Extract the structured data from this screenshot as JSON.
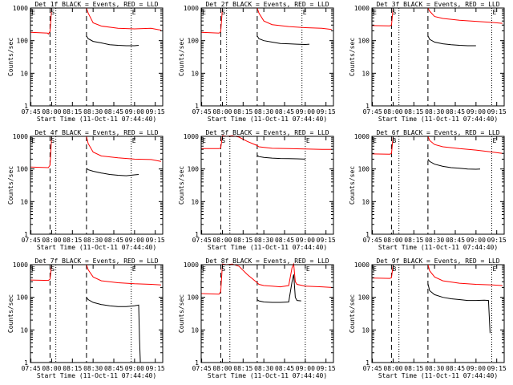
{
  "chart_data": [
    {
      "type": "line",
      "title": "Det 1f BLACK = Events, RED = LLD",
      "ylabel": "Counts/sec",
      "xlabel": "Start Time (11-Oct-11 07:44:40)",
      "x_ticks": [
        "07:45",
        "08:00",
        "08:15",
        "08:30",
        "08:45",
        "09:00",
        "09:15"
      ],
      "y_ticks": [
        "1",
        "10",
        "100",
        "1000"
      ],
      "xlim": [
        7.744,
        9.34
      ],
      "ylim": [
        1,
        1000
      ],
      "yscale": "log",
      "flags": [
        {
          "x": 7.745,
          "text": "E"
        },
        {
          "x": 7.98,
          "text": "S"
        },
        {
          "x": 8.96,
          "text": "E"
        }
      ],
      "dashed_lines": [
        7.98,
        8.42
      ],
      "dotted_lines": [
        8.05,
        8.96
      ],
      "series": [
        {
          "name": "RED",
          "color": "#ff0000",
          "x": [
            7.745,
            7.95,
            7.96,
            7.98,
            8.0,
            8.42,
            8.44,
            8.5,
            8.6,
            8.8,
            9.0,
            9.2,
            9.32
          ],
          "y": [
            180,
            170,
            160,
            190,
            1000,
            1000,
            700,
            350,
            280,
            240,
            230,
            240,
            210
          ]
        },
        {
          "name": "BLACK",
          "color": "#000000",
          "x": [
            8.42,
            8.44,
            8.5,
            8.6,
            8.7,
            8.8,
            8.9,
            9.0,
            9.05
          ],
          "y": [
            140,
            115,
            95,
            85,
            75,
            72,
            70,
            70,
            72
          ]
        }
      ]
    },
    {
      "type": "line",
      "title": "Det 2f BLACK = Events, RED = LLD",
      "ylabel": "Counts/sec",
      "xlabel": "Start Time (11-Oct-11 07:44:40)",
      "x_ticks": [
        "07:45",
        "08:00",
        "08:15",
        "08:30",
        "08:45",
        "09:00",
        "09:15"
      ],
      "y_ticks": [
        "1",
        "10",
        "100",
        "1000"
      ],
      "xlim": [
        7.744,
        9.34
      ],
      "ylim": [
        1,
        1000
      ],
      "yscale": "log",
      "flags": [
        {
          "x": 7.745,
          "text": "E"
        },
        {
          "x": 7.98,
          "text": "S"
        },
        {
          "x": 8.96,
          "text": "E"
        }
      ],
      "dashed_lines": [
        7.98,
        8.42
      ],
      "dotted_lines": [
        8.05,
        8.96
      ],
      "series": [
        {
          "name": "RED",
          "color": "#ff0000",
          "x": [
            7.745,
            7.96,
            7.98,
            8.0,
            8.42,
            8.44,
            8.5,
            8.6,
            8.8,
            9.0,
            9.2,
            9.32
          ],
          "y": [
            180,
            170,
            190,
            1000,
            1000,
            700,
            400,
            310,
            270,
            250,
            240,
            220
          ]
        },
        {
          "name": "BLACK",
          "color": "#000000",
          "x": [
            8.42,
            8.44,
            8.5,
            8.6,
            8.7,
            8.8,
            8.9,
            9.0,
            9.05
          ],
          "y": [
            140,
            115,
            100,
            90,
            82,
            80,
            78,
            76,
            78
          ]
        }
      ]
    },
    {
      "type": "line",
      "title": "Det 3f BLACK = Events, RED = LLD",
      "ylabel": "Counts/sec",
      "xlabel": "Start Time (11-Oct-11 07:44:40)",
      "x_ticks": [
        "07:45",
        "08:00",
        "08:15",
        "08:30",
        "08:45",
        "09:00",
        "09:15"
      ],
      "y_ticks": [
        "1",
        "10",
        "100",
        "1000"
      ],
      "xlim": [
        7.744,
        9.34
      ],
      "ylim": [
        1,
        1000
      ],
      "yscale": "log",
      "flags": [
        {
          "x": 7.745,
          "text": "E"
        },
        {
          "x": 7.98,
          "text": "S"
        },
        {
          "x": 9.19,
          "text": "E"
        }
      ],
      "dashed_lines": [
        7.98,
        8.42
      ],
      "dotted_lines": [
        8.07,
        9.19
      ],
      "series": [
        {
          "name": "RED",
          "color": "#ff0000",
          "x": [
            7.745,
            7.96,
            7.98,
            8.0,
            8.42,
            8.44,
            8.5,
            8.6,
            8.8,
            9.0,
            9.2,
            9.32
          ],
          "y": [
            290,
            285,
            300,
            1000,
            1000,
            800,
            550,
            480,
            420,
            390,
            360,
            340
          ]
        },
        {
          "name": "BLACK",
          "color": "#000000",
          "x": [
            8.42,
            8.44,
            8.5,
            8.6,
            8.7,
            8.8,
            8.9,
            9.0
          ],
          "y": [
            140,
            110,
            90,
            80,
            75,
            72,
            70,
            70
          ]
        }
      ]
    },
    {
      "type": "line",
      "title": "Det 4f BLACK = Events, RED = LLD",
      "ylabel": "Counts/sec",
      "xlabel": "Start Time (11-Oct-11 07:44:40)",
      "x_ticks": [
        "07:45",
        "08:00",
        "08:15",
        "08:30",
        "08:45",
        "09:00",
        "09:15"
      ],
      "y_ticks": [
        "1",
        "10",
        "100",
        "1000"
      ],
      "xlim": [
        7.744,
        9.34
      ],
      "ylim": [
        1,
        1000
      ],
      "yscale": "log",
      "flags": [
        {
          "x": 7.745,
          "text": "E"
        },
        {
          "x": 7.98,
          "text": "S"
        },
        {
          "x": 8.96,
          "text": "E"
        }
      ],
      "dashed_lines": [
        7.98,
        8.42
      ],
      "dotted_lines": [
        8.05,
        8.96
      ],
      "series": [
        {
          "name": "RED",
          "color": "#ff0000",
          "x": [
            7.745,
            7.96,
            7.98,
            8.0,
            8.42,
            8.44,
            8.5,
            8.6,
            8.8,
            9.0,
            9.2,
            9.32
          ],
          "y": [
            115,
            110,
            130,
            1000,
            1000,
            600,
            330,
            250,
            220,
            200,
            195,
            170
          ]
        },
        {
          "name": "BLACK",
          "color": "#000000",
          "x": [
            8.42,
            8.44,
            8.5,
            8.6,
            8.7,
            8.8,
            8.9,
            9.0,
            9.05
          ],
          "y": [
            105,
            95,
            85,
            75,
            68,
            64,
            62,
            66,
            68
          ]
        }
      ]
    },
    {
      "type": "line",
      "title": "Det 5f BLACK = Events, RED = LLD",
      "ylabel": "Counts/sec",
      "xlabel": "Start Time (11-Oct-11 07:44:40)",
      "x_ticks": [
        "07:45",
        "08:00",
        "08:15",
        "08:30",
        "08:45",
        "09:00",
        "09:15"
      ],
      "y_ticks": [
        "1",
        "10",
        "100",
        "1000"
      ],
      "xlim": [
        7.744,
        9.34
      ],
      "ylim": [
        1,
        1000
      ],
      "yscale": "log",
      "flags": [
        {
          "x": 7.745,
          "text": "E"
        },
        {
          "x": 7.98,
          "text": "S"
        },
        {
          "x": 9.0,
          "text": "E"
        }
      ],
      "dashed_lines": [
        7.98,
        8.42
      ],
      "dotted_lines": [
        8.09,
        9.0
      ],
      "series": [
        {
          "name": "RED",
          "color": "#ff0000",
          "x": [
            7.745,
            7.96,
            7.98,
            8.0,
            8.05,
            8.12,
            8.2,
            8.3,
            8.42,
            8.44,
            8.5,
            8.6,
            8.8,
            9.0,
            9.2,
            9.32
          ],
          "y": [
            420,
            420,
            440,
            1100,
            1000,
            1050,
            950,
            700,
            520,
            480,
            460,
            430,
            420,
            410,
            400,
            400
          ]
        },
        {
          "name": "BLACK",
          "color": "#000000",
          "x": [
            8.42,
            8.44,
            8.5,
            8.6,
            8.7,
            8.8,
            8.9,
            9.0
          ],
          "y": [
            260,
            240,
            225,
            215,
            210,
            208,
            205,
            200
          ]
        }
      ]
    },
    {
      "type": "line",
      "title": "Det 6f BLACK = Events, RED = LLD",
      "ylabel": "Counts/sec",
      "xlabel": "Start Time (11-Oct-11 07:44:40)",
      "x_ticks": [
        "07:45",
        "08:00",
        "08:15",
        "08:30",
        "08:45",
        "09:00",
        "09:15"
      ],
      "y_ticks": [
        "1",
        "10",
        "100",
        "1000"
      ],
      "xlim": [
        7.744,
        9.34
      ],
      "ylim": [
        1,
        1000
      ],
      "yscale": "log",
      "flags": [
        {
          "x": 7.745,
          "text": "E"
        },
        {
          "x": 7.98,
          "text": "B"
        },
        {
          "x": 9.19,
          "text": "E"
        }
      ],
      "dashed_lines": [
        7.98,
        8.42
      ],
      "dotted_lines": [
        8.07,
        9.19
      ],
      "series": [
        {
          "name": "RED",
          "color": "#ff0000",
          "x": [
            7.745,
            7.96,
            7.98,
            8.0,
            8.42,
            8.44,
            8.5,
            8.6,
            8.8,
            9.0,
            9.2,
            9.32
          ],
          "y": [
            290,
            285,
            300,
            1000,
            1000,
            750,
            560,
            480,
            420,
            380,
            330,
            300
          ]
        },
        {
          "name": "BLACK",
          "color": "#000000",
          "x": [
            8.42,
            8.44,
            8.5,
            8.6,
            8.7,
            8.8,
            8.9,
            9.0,
            9.05
          ],
          "y": [
            200,
            170,
            140,
            120,
            110,
            105,
            100,
            98,
            100
          ]
        }
      ]
    },
    {
      "type": "line",
      "title": "Det 7f BLACK = Events, RED = LLD",
      "ylabel": "Counts/sec",
      "xlabel": "Start Time (11-Oct-11 07:44:40)",
      "x_ticks": [
        "07:45",
        "08:00",
        "08:15",
        "08:30",
        "08:45",
        "09:00",
        "09:15"
      ],
      "y_ticks": [
        "1",
        "10",
        "100",
        "1000"
      ],
      "xlim": [
        7.744,
        9.34
      ],
      "ylim": [
        1,
        1000
      ],
      "yscale": "log",
      "flags": [
        {
          "x": 7.745,
          "text": "E"
        },
        {
          "x": 7.98,
          "text": "S"
        },
        {
          "x": 8.96,
          "text": "E"
        }
      ],
      "dashed_lines": [
        7.98,
        8.42
      ],
      "dotted_lines": [
        8.05,
        8.96
      ],
      "series": [
        {
          "name": "RED",
          "color": "#ff0000",
          "x": [
            7.745,
            7.96,
            7.98,
            8.0,
            8.42,
            8.44,
            8.5,
            8.6,
            8.8,
            9.0,
            9.2,
            9.32
          ],
          "y": [
            340,
            330,
            360,
            1000,
            1000,
            700,
            420,
            320,
            280,
            260,
            250,
            240
          ]
        },
        {
          "name": "BLACK",
          "color": "#000000",
          "x": [
            8.42,
            8.44,
            8.5,
            8.6,
            8.7,
            8.8,
            8.9,
            9.0,
            9.05,
            9.06,
            9.07
          ],
          "y": [
            100,
            85,
            70,
            60,
            55,
            52,
            52,
            55,
            58,
            5,
            1
          ]
        }
      ]
    },
    {
      "type": "line",
      "title": "Det 8f BLACK = Events, RED = LLD",
      "ylabel": "Counts/sec",
      "xlabel": "Start Time (11-Oct-11 07:44:40)",
      "x_ticks": [
        "07:45",
        "08:00",
        "08:15",
        "08:30",
        "08:45",
        "09:00",
        "09:15"
      ],
      "y_ticks": [
        "1",
        "10",
        "100",
        "1000"
      ],
      "xlim": [
        7.744,
        9.34
      ],
      "ylim": [
        1,
        1000
      ],
      "yscale": "log",
      "flags": [
        {
          "x": 7.745,
          "text": "E"
        },
        {
          "x": 7.98,
          "text": "S"
        },
        {
          "x": 9.0,
          "text": "E"
        }
      ],
      "dashed_lines": [
        7.98,
        8.42
      ],
      "dotted_lines": [
        8.09,
        9.0
      ],
      "series": [
        {
          "name": "RED",
          "color": "#ff0000",
          "x": [
            7.745,
            7.96,
            7.98,
            8.0,
            8.05,
            8.12,
            8.2,
            8.3,
            8.42,
            8.44,
            8.5,
            8.6,
            8.7,
            8.8,
            8.84,
            8.86,
            8.88,
            8.9,
            9.0,
            9.2,
            9.32
          ],
          "y": [
            130,
            125,
            150,
            1100,
            1000,
            1100,
            900,
            500,
            280,
            250,
            230,
            220,
            210,
            230,
            800,
            1100,
            300,
            250,
            220,
            210,
            200
          ]
        },
        {
          "name": "BLACK",
          "color": "#000000",
          "x": [
            8.42,
            8.44,
            8.5,
            8.6,
            8.7,
            8.8,
            8.84,
            8.86,
            8.88,
            8.9,
            8.95
          ],
          "y": [
            85,
            78,
            72,
            70,
            70,
            72,
            300,
            500,
            100,
            80,
            78
          ]
        }
      ]
    },
    {
      "type": "line",
      "title": "Det 9f BLACK = Events, RED = LLD",
      "ylabel": "Counts/sec",
      "xlabel": "Start Time (11-Oct-11 07:44:40)",
      "x_ticks": [
        "07:45",
        "08:00",
        "08:15",
        "08:30",
        "08:45",
        "09:00",
        "09:15"
      ],
      "y_ticks": [
        "1",
        "10",
        "100",
        "1000"
      ],
      "xlim": [
        7.744,
        9.34
      ],
      "ylim": [
        1,
        1000
      ],
      "yscale": "log",
      "flags": [
        {
          "x": 7.745,
          "text": "E"
        },
        {
          "x": 7.98,
          "text": "B"
        },
        {
          "x": 9.19,
          "text": "E"
        }
      ],
      "dashed_lines": [
        7.98,
        8.42
      ],
      "dotted_lines": [
        8.07,
        9.19
      ],
      "series": [
        {
          "name": "RED",
          "color": "#ff0000",
          "x": [
            7.745,
            7.96,
            7.98,
            8.0,
            8.42,
            8.44,
            8.5,
            8.6,
            8.8,
            9.0,
            9.2,
            9.32
          ],
          "y": [
            390,
            380,
            400,
            1000,
            1000,
            650,
            420,
            320,
            270,
            250,
            240,
            230
          ]
        },
        {
          "name": "BLACK",
          "color": "#000000",
          "x": [
            8.42,
            8.44,
            8.5,
            8.6,
            8.7,
            8.8,
            8.9,
            9.0,
            9.1,
            9.15,
            9.17
          ],
          "y": [
            260,
            160,
            120,
            100,
            90,
            85,
            80,
            80,
            82,
            80,
            8
          ]
        }
      ]
    }
  ]
}
